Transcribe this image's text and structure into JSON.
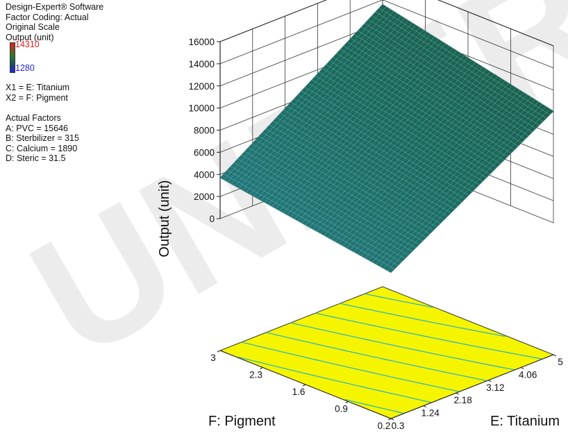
{
  "watermark": "UNDER",
  "legend": {
    "software": "Design-Expert® Software",
    "factor_coding": "Factor Coding: Actual",
    "scale": "Original Scale",
    "response": "Output (unit)",
    "color_max": "14310",
    "color_min": "1280",
    "x1": "X1 = E: Titanium",
    "x2": "X2 = F: Pigment",
    "actual_factors_title": "Actual Factors",
    "factor_a": "A: PVC = 15646",
    "factor_b": "B: Sterbilizer = 315",
    "factor_c": "C: Calcium = 1890",
    "factor_d": "D: Steric = 31.5",
    "colors": {
      "max": "#e1201f",
      "min": "#2222dd",
      "surface": "#1f5f5a",
      "contour_plane": "#f5f500",
      "contour_line": "#33b8b8"
    }
  },
  "chart_data": {
    "type": "surface",
    "title": "",
    "xlabel": "E: Titanium",
    "ylabel": "F: Pigment",
    "zlabel": "Output (unit)",
    "x_ticks": [
      "0.3",
      "1.24",
      "2.18",
      "3.12",
      "4.06",
      "5"
    ],
    "y_ticks": [
      "0.2",
      "0.9",
      "1.6",
      "2.3",
      "3"
    ],
    "z_ticks": [
      "0",
      "2000",
      "4000",
      "6000",
      "8000",
      "10000",
      "12000",
      "14000",
      "16000"
    ],
    "x_range": [
      0.3,
      5
    ],
    "y_range": [
      0.2,
      3
    ],
    "z_range": [
      0,
      16000
    ],
    "surface_corners": [
      {
        "x": 0.3,
        "y": 0.2,
        "z": 1280
      },
      {
        "x": 5,
        "y": 0.2,
        "z": 10100
      },
      {
        "x": 0.3,
        "y": 3,
        "z": 3700
      },
      {
        "x": 5,
        "y": 3,
        "z": 13600
      }
    ],
    "grid": true
  }
}
